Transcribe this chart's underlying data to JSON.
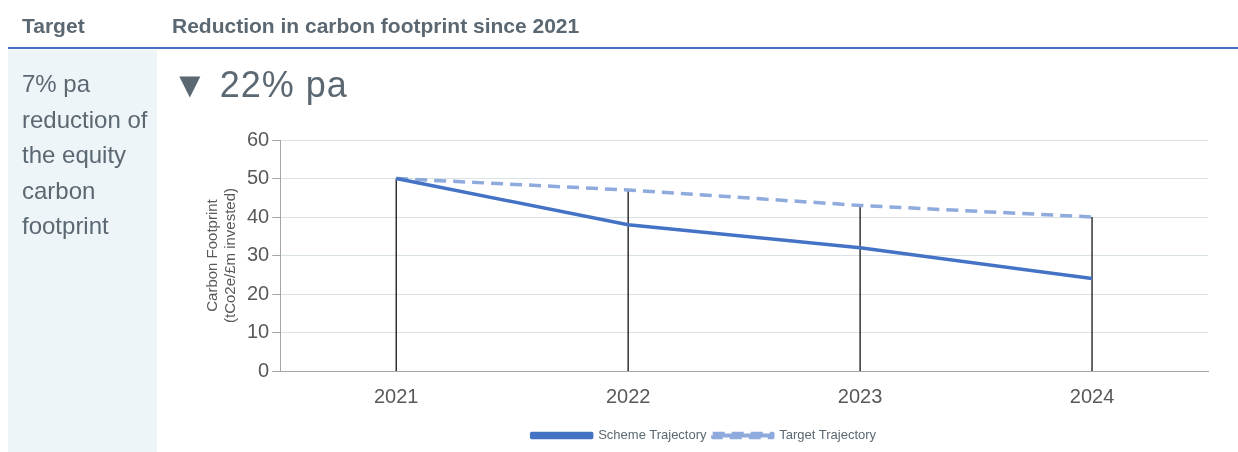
{
  "chart_data": {
    "type": "line",
    "title": "Reduction in carbon footprint since 2021",
    "ylabel": "Carbon Footprint\n(tCo2e/£m invested)",
    "annotations": [
      "Target",
      "7% pa reduction of the equity carbon footprint",
      "▼ 22% pa"
    ],
    "categories": [
      "2021",
      "2022",
      "2023",
      "2024"
    ],
    "series": [
      {
        "name": "Scheme Trajectory",
        "color": "#4472c4",
        "values": [
          50,
          38,
          32,
          24
        ],
        "line_style": "solid"
      },
      {
        "name": "Target Trajectory",
        "color": "#8faadc",
        "values": [
          50,
          47,
          43,
          40
        ],
        "line_style": "dashed"
      }
    ],
    "ref_lines": [
      {
        "axis": "x",
        "value": "2021",
        "color": "#000000"
      },
      {
        "axis": "x",
        "value": "2022",
        "color": "#000000"
      },
      {
        "axis": "x",
        "value": "2023",
        "color": "#000000"
      },
      {
        "axis": "x",
        "value": "2024",
        "color": "#000000"
      }
    ],
    "ylim": [
      0,
      60
    ],
    "yticks": [
      0,
      10,
      20,
      30,
      40,
      50,
      60
    ],
    "grid": "y",
    "legend": "bottom",
    "marker": "none"
  }
}
